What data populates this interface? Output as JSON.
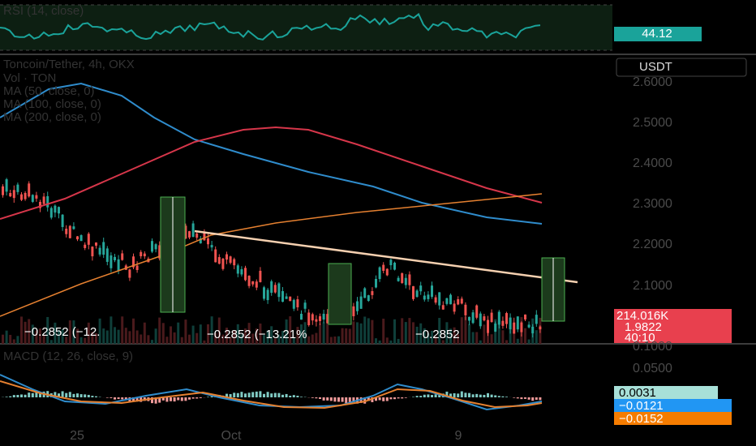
{
  "rsi": {
    "title": "RSI (14, close)",
    "value": "44.12"
  },
  "legend": {
    "symbol": "Toncoin/Tether, 4h, OKX",
    "volume": "Vol · TON",
    "ma50": "MA (50, close, 0)",
    "ma100": "MA (100, close, 0)",
    "ma200": "MA (200, close, 0)"
  },
  "currency": "USDT",
  "price_axis": [
    "2.6000",
    "2.5000",
    "2.4000",
    "2.3000",
    "2.2000",
    "2.1000",
    "0.1000",
    "0.0500"
  ],
  "badges": {
    "volume": "214.016K",
    "price": "1.9822",
    "countdown": "40:10"
  },
  "measures": [
    "−0.2852 (−12.",
    "−0.2852 (−13.21%",
    "−0.2852"
  ],
  "macd": {
    "title": "MACD (12, 26, close, 9)",
    "hist": "0.0031",
    "macd": "−0.0121",
    "signal": "−0.0152"
  },
  "time_axis": [
    "25",
    "Oct",
    "9"
  ]
}
